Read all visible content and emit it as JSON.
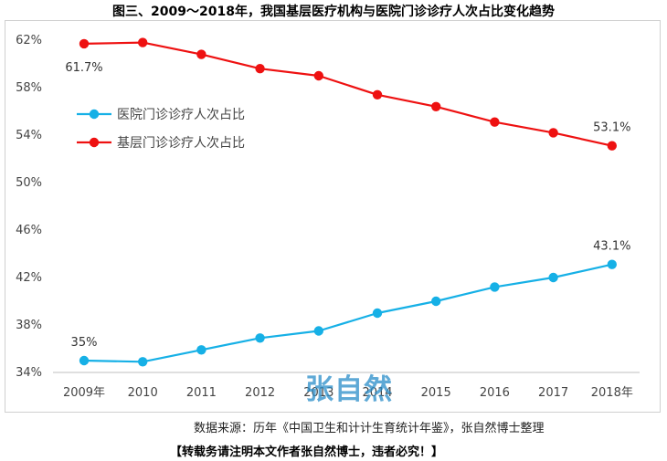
{
  "title": "图三、2009～2018年，我国基层医疗机构与医院门诊诊疗人次占比变化趋势",
  "source_text": "数据来源：历年《中国卫生和计计生育统计年鉴》，张自然博士整理",
  "notice_text": "【转载务请注明本文作者张自然博士，违者必究！】",
  "watermark_text": "张自然",
  "chart_data": {
    "type": "line",
    "categories": [
      "2009年",
      "2010",
      "2011",
      "2012",
      "2013",
      "2014",
      "2015",
      "2016",
      "2017",
      "2018年"
    ],
    "ylim": [
      34,
      62
    ],
    "yticks": [
      34,
      38,
      42,
      46,
      50,
      54,
      58,
      62
    ],
    "ytick_labels": [
      "34%",
      "38%",
      "42%",
      "46%",
      "50%",
      "54%",
      "58%",
      "62%"
    ],
    "grid": false,
    "legend_position": "upper-left",
    "series": [
      {
        "name": "医院门诊诊疗人次占比",
        "color": "#16b0e6",
        "values": [
          35.0,
          34.9,
          35.9,
          36.9,
          37.5,
          39.0,
          40.0,
          41.2,
          42.0,
          43.1
        ],
        "data_labels": [
          {
            "index": 0,
            "text": "35%"
          },
          {
            "index": 9,
            "text": "43.1%"
          }
        ]
      },
      {
        "name": "基层门诊诊疗人次占比",
        "color": "#ee1111",
        "values": [
          61.7,
          61.8,
          60.8,
          59.6,
          59.0,
          57.4,
          56.4,
          55.1,
          54.2,
          53.1
        ],
        "data_labels": [
          {
            "index": 0,
            "text": "61.7%"
          },
          {
            "index": 9,
            "text": "53.1%"
          }
        ]
      }
    ]
  }
}
